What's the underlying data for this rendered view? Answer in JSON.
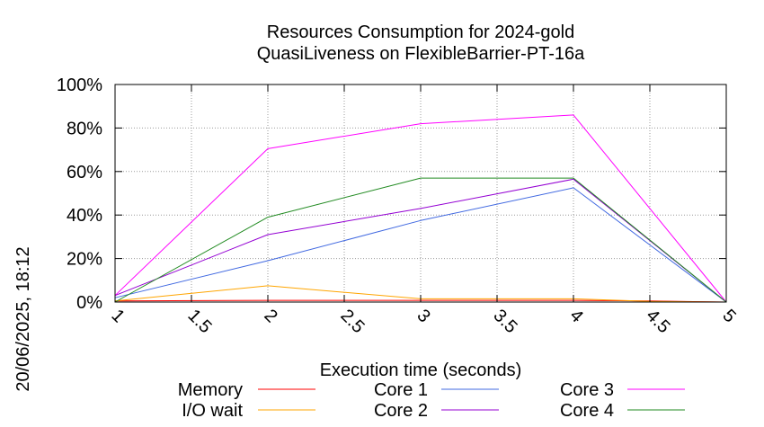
{
  "chart_data": {
    "type": "line",
    "title": "Resources Consumption for 2024-gold",
    "subtitle": "QuasiLiveness on FlexibleBarrier-PT-16a",
    "xlabel": "Execution time (seconds)",
    "ylabel": "",
    "timestamp": "20/06/2025, 18:12",
    "xlim": [
      1,
      5
    ],
    "ylim": [
      0,
      100
    ],
    "x_ticks": [
      1,
      1.5,
      2,
      2.5,
      3,
      3.5,
      4,
      4.5,
      5
    ],
    "x_tick_labels": [
      "1",
      "1.5",
      "2",
      "2.5",
      "3",
      "3.5",
      "4",
      "4.5",
      "5"
    ],
    "y_ticks": [
      0,
      20,
      40,
      60,
      80,
      100
    ],
    "y_tick_labels": [
      "0%",
      "20%",
      "40%",
      "60%",
      "80%",
      "100%"
    ],
    "grid": true,
    "legend_position": "bottom",
    "series": [
      {
        "name": "Memory",
        "color": "#ff0000",
        "x": [
          1,
          2,
          3,
          4,
          4.5,
          5
        ],
        "values": [
          0.5,
          0.8,
          0.8,
          0.8,
          0.5,
          0
        ]
      },
      {
        "name": "I/O wait",
        "color": "#ffa500",
        "x": [
          1,
          2,
          3,
          4,
          4.5,
          5
        ],
        "values": [
          0.5,
          7.5,
          1.5,
          1.5,
          0.3,
          0
        ]
      },
      {
        "name": "Core 1",
        "color": "#4169e1",
        "x": [
          1,
          2,
          3,
          4,
          5
        ],
        "values": [
          2,
          19,
          37.5,
          52.5,
          0
        ]
      },
      {
        "name": "Core 2",
        "color": "#9400d3",
        "x": [
          1,
          2,
          3,
          4,
          5
        ],
        "values": [
          3,
          31,
          43,
          56.5,
          0
        ]
      },
      {
        "name": "Core 3",
        "color": "#ff00ff",
        "x": [
          1,
          2,
          3,
          4,
          5
        ],
        "values": [
          3,
          70.5,
          82,
          86,
          0
        ]
      },
      {
        "name": "Core 4",
        "color": "#228b22",
        "x": [
          1,
          2,
          3,
          4,
          5
        ],
        "values": [
          0,
          39,
          57,
          57,
          0
        ]
      }
    ]
  }
}
